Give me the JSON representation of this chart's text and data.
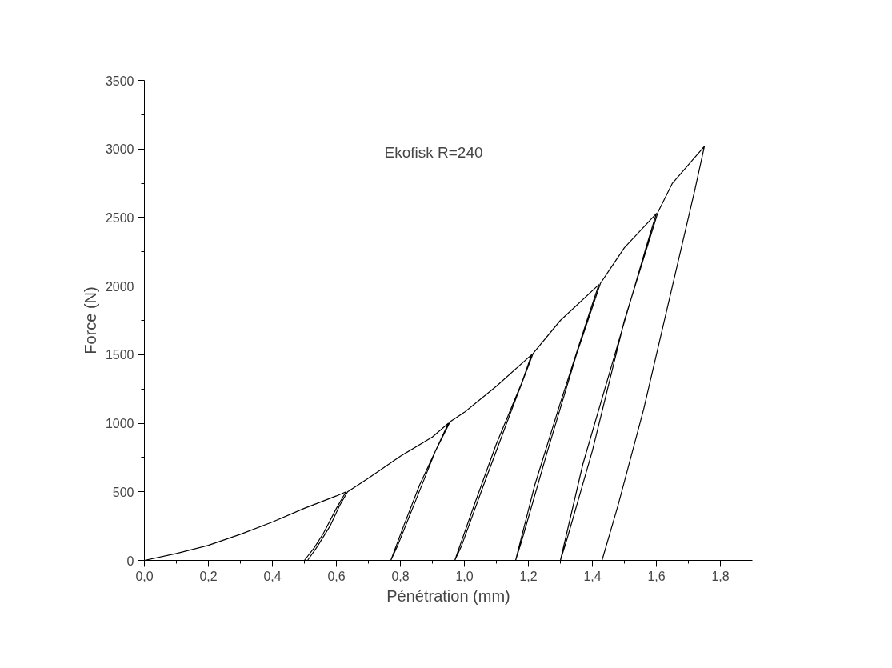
{
  "chart_data": {
    "type": "line",
    "xlabel": "Pénétration (mm)",
    "ylabel": "Force (N)",
    "annotations": [
      "Ekofisk  R=240"
    ],
    "xlim": [
      0,
      1.9
    ],
    "ylim": [
      0,
      3500
    ],
    "xticks": [
      {
        "value": 0,
        "label": "0,0"
      },
      {
        "value": 0.2,
        "label": "0,2"
      },
      {
        "value": 0.4,
        "label": "0,4"
      },
      {
        "value": 0.6,
        "label": "0,6"
      },
      {
        "value": 0.8,
        "label": "0,8"
      },
      {
        "value": 1.0,
        "label": "1,0"
      },
      {
        "value": 1.2,
        "label": "1,2"
      },
      {
        "value": 1.4,
        "label": "1,4"
      },
      {
        "value": 1.6,
        "label": "1,6"
      },
      {
        "value": 1.8,
        "label": "1,8"
      }
    ],
    "yticks": [
      0,
      500,
      1000,
      1500,
      2000,
      2500,
      3000,
      3500
    ],
    "grid": false,
    "marker": "none",
    "line_style": "solid",
    "series": [
      {
        "color": "#000000",
        "x": [
          0,
          0.1,
          0.2,
          0.3,
          0.4,
          0.5,
          0.6,
          0.63,
          0.6,
          0.56,
          0.53,
          0.5,
          0.51,
          0.54,
          0.58,
          0.61,
          0.635,
          0.7,
          0.8,
          0.9,
          0.95,
          0.92,
          0.86,
          0.81,
          0.77,
          0.79,
          0.85,
          0.91,
          0.955,
          1.0,
          1.1,
          1.21,
          1.18,
          1.1,
          1.03,
          0.97,
          0.99,
          1.06,
          1.14,
          1.215,
          1.3,
          1.42,
          1.39,
          1.3,
          1.22,
          1.16,
          1.18,
          1.26,
          1.35,
          1.425,
          1.5,
          1.6,
          1.57,
          1.47,
          1.37,
          1.3,
          1.32,
          1.4,
          1.5,
          1.605,
          1.65,
          1.75,
          1.72,
          1.65,
          1.56,
          1.48,
          1.43
        ],
        "values": [
          0,
          50,
          110,
          190,
          280,
          380,
          470,
          500,
          380,
          200,
          90,
          0,
          0,
          100,
          250,
          400,
          500,
          600,
          760,
          900,
          1000,
          850,
          550,
          250,
          0,
          100,
          450,
          800,
          1010,
          1080,
          1270,
          1500,
          1300,
          850,
          400,
          0,
          100,
          550,
          1050,
          1510,
          1750,
          2010,
          1800,
          1150,
          550,
          0,
          150,
          800,
          1500,
          2020,
          2280,
          2530,
          2300,
          1500,
          700,
          0,
          150,
          800,
          1750,
          2540,
          2750,
          3020,
          2700,
          2000,
          1100,
          400,
          0
        ]
      }
    ]
  }
}
